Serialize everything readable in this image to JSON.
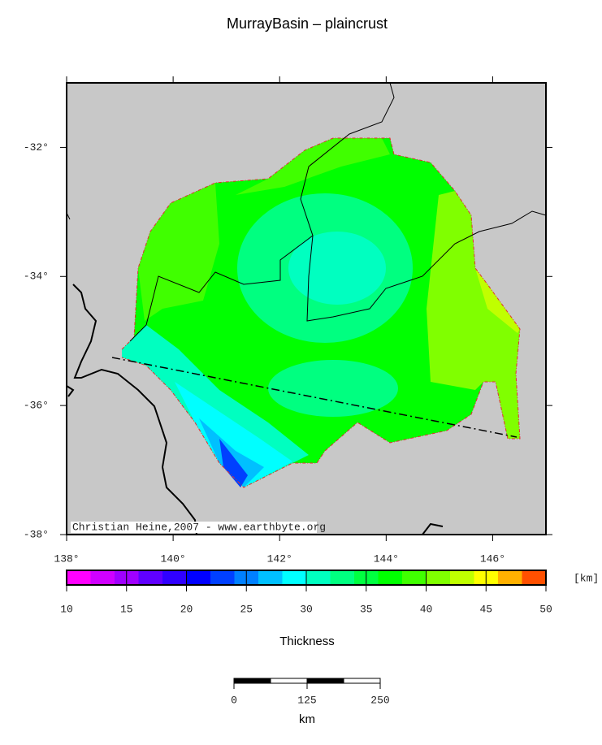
{
  "title": "MurrayBasin – plaincrust",
  "map": {
    "xlim": [
      138,
      147
    ],
    "ylim": [
      -38,
      -31
    ],
    "xticks": [
      {
        "value": 138,
        "label": "138°"
      },
      {
        "value": 140,
        "label": "140°"
      },
      {
        "value": 142,
        "label": "142°"
      },
      {
        "value": 144,
        "label": "144°"
      },
      {
        "value": 146,
        "label": "146°"
      }
    ],
    "yticks": [
      {
        "value": -32,
        "label": "-32°"
      },
      {
        "value": -34,
        "label": "-34°"
      },
      {
        "value": -36,
        "label": "-36°"
      },
      {
        "value": -38,
        "label": "-38°"
      }
    ],
    "background": "#c8c8c8",
    "credit": "Christian Heine,2007 - www.earthbyte.org"
  },
  "zones": [
    {
      "thickness": 37
    },
    {
      "thickness": 39
    },
    {
      "thickness": 33
    },
    {
      "thickness": 31
    },
    {
      "thickness": 41
    },
    {
      "thickness": 43
    },
    {
      "thickness": 33
    },
    {
      "thickness": 31
    },
    {
      "thickness": 29
    },
    {
      "thickness": 27
    },
    {
      "thickness": 23
    },
    {
      "thickness": 39
    }
  ],
  "colorbar": {
    "label": "Thickness",
    "unit": "[km]",
    "lim": [
      10,
      50
    ],
    "ticks": [
      10,
      15,
      20,
      25,
      30,
      35,
      40,
      45,
      50
    ],
    "colors": [
      "#ff00ff",
      "#d000ff",
      "#a000ff",
      "#6000ff",
      "#3000ff",
      "#0000ff",
      "#0040ff",
      "#0080ff",
      "#00c0ff",
      "#00ffff",
      "#00ffc0",
      "#00ff80",
      "#00ff40",
      "#00ff00",
      "#40ff00",
      "#80ff00",
      "#c0ff00",
      "#ffff00",
      "#ffb000",
      "#ff5000"
    ]
  },
  "scalebar": {
    "ticks": [
      0,
      125,
      250
    ],
    "unit": "km"
  }
}
